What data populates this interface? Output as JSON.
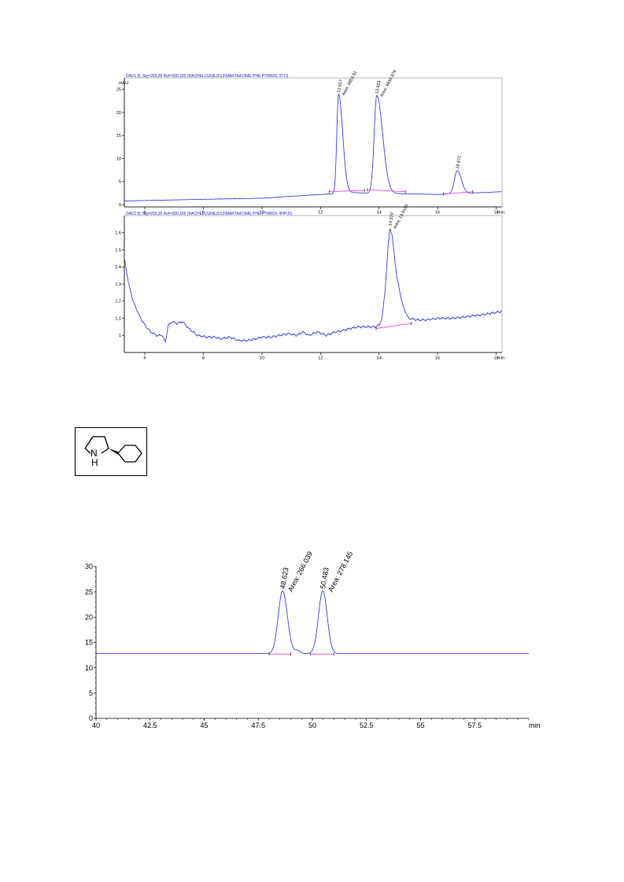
{
  "chart_data": [
    {
      "id": "c1",
      "type": "line",
      "header": "DAD1 B, Sig=255,35 Ref=360,100 (RACHEL\\JUNE2013\\MARTA\\FOME PHE PYRROL 3T.D)",
      "ylabel": "mAU",
      "xunit": "min",
      "xlim": [
        5.3,
        18.2
      ],
      "ylim": [
        -0.5,
        27.5
      ],
      "xticks": [
        {
          "v": 6,
          "label": "6"
        },
        {
          "v": 8,
          "label": "8"
        },
        {
          "v": 10,
          "label": "10"
        },
        {
          "v": 12,
          "label": "12"
        },
        {
          "v": 14,
          "label": "14"
        },
        {
          "v": 16,
          "label": "16"
        },
        {
          "v": 18,
          "label": "18"
        }
      ],
      "yticks": [
        {
          "v": 0,
          "label": "0"
        },
        {
          "v": 5,
          "label": "5"
        },
        {
          "v": 10,
          "label": "10"
        },
        {
          "v": 15,
          "label": "15"
        },
        {
          "v": 20,
          "label": "20"
        },
        {
          "v": 25,
          "label": "25"
        }
      ],
      "baseline": 0.8,
      "drift": [
        [
          5.3,
          0.8
        ],
        [
          10,
          1.4
        ],
        [
          12,
          2.2
        ],
        [
          13,
          2.6
        ],
        [
          16,
          2.2
        ],
        [
          18.2,
          2.8
        ]
      ],
      "peaks": [
        {
          "rt": 12.617,
          "label": "12.617",
          "area_label": "Area: 4853.91",
          "height": 21.5,
          "w1": 0.06,
          "w2": 0.14
        },
        {
          "rt": 13.923,
          "label": "13.923",
          "area_label": "Area: 4834.679",
          "height": 21.2,
          "w1": 0.09,
          "w2": 0.2
        },
        {
          "rt": 16.672,
          "label": "16.672",
          "area_label": "",
          "height": 5.0,
          "w1": 0.1,
          "w2": 0.14
        }
      ],
      "baseline_segments": [
        [
          12.3,
          2.8,
          13.5,
          3.1
        ],
        [
          13.6,
          3.2,
          14.9,
          2.8
        ],
        [
          16.2,
          2.3,
          17.2,
          2.8
        ]
      ]
    },
    {
      "id": "c2",
      "type": "line",
      "header": "DAD1 B, Sig=255,35 Ref=360,100 (RACHEL\\JUNE2013\\MARTA\\FOME PHE PYRROL 4HH.D)",
      "ylabel": "",
      "xunit": "min",
      "xlim": [
        5.3,
        18.2
      ],
      "ylim": [
        0.9,
        1.7
      ],
      "xticks": [
        {
          "v": 6,
          "label": "6"
        },
        {
          "v": 8,
          "label": "8"
        },
        {
          "v": 10,
          "label": "10"
        },
        {
          "v": 12,
          "label": "12"
        },
        {
          "v": 14,
          "label": "14"
        },
        {
          "v": 16,
          "label": "16"
        },
        {
          "v": 18,
          "label": "18"
        }
      ],
      "yticks": [
        {
          "v": 1.0,
          "label": "1"
        },
        {
          "v": 1.1,
          "label": "1.1"
        },
        {
          "v": 1.2,
          "label": "1.2"
        },
        {
          "v": 1.3,
          "label": "1.3"
        },
        {
          "v": 1.4,
          "label": "1.4"
        },
        {
          "v": 1.5,
          "label": "1.5"
        },
        {
          "v": 1.6,
          "label": "1.6"
        }
      ],
      "noisy": [
        [
          5.3,
          1.45
        ],
        [
          5.45,
          1.3
        ],
        [
          5.6,
          1.2
        ],
        [
          5.8,
          1.12
        ],
        [
          6.0,
          1.06
        ],
        [
          6.2,
          1.02
        ],
        [
          6.4,
          1.0
        ],
        [
          6.6,
          1.0
        ],
        [
          6.7,
          0.96
        ],
        [
          6.8,
          1.06
        ],
        [
          6.95,
          1.08
        ],
        [
          7.1,
          1.07
        ],
        [
          7.3,
          1.08
        ],
        [
          7.5,
          1.04
        ],
        [
          7.8,
          1.0
        ],
        [
          8.1,
          0.99
        ],
        [
          8.4,
          0.99
        ],
        [
          8.6,
          0.98
        ],
        [
          8.9,
          0.99
        ],
        [
          9.2,
          0.97
        ],
        [
          9.5,
          0.97
        ],
        [
          9.8,
          0.98
        ],
        [
          10.0,
          0.99
        ],
        [
          10.3,
          0.99
        ],
        [
          10.6,
          1.0
        ],
        [
          10.9,
          1.01
        ],
        [
          11.2,
          1.0
        ],
        [
          11.4,
          1.02
        ],
        [
          11.6,
          1.0
        ],
        [
          11.9,
          1.02
        ],
        [
          12.2,
          1.0
        ],
        [
          12.5,
          1.02
        ],
        [
          12.8,
          1.03
        ],
        [
          13.0,
          1.04
        ],
        [
          13.3,
          1.05
        ],
        [
          13.6,
          1.05
        ],
        [
          13.9,
          1.05
        ],
        [
          14.0,
          1.06
        ],
        [
          14.1,
          1.1
        ],
        [
          14.2,
          1.25
        ],
        [
          14.3,
          1.5
        ],
        [
          14.37,
          1.63
        ],
        [
          14.45,
          1.58
        ],
        [
          14.6,
          1.35
        ],
        [
          14.8,
          1.18
        ],
        [
          15.0,
          1.1
        ],
        [
          15.3,
          1.09
        ],
        [
          15.6,
          1.09
        ],
        [
          16.0,
          1.1
        ],
        [
          16.5,
          1.1
        ],
        [
          17.0,
          1.11
        ],
        [
          17.5,
          1.12
        ],
        [
          18.2,
          1.14
        ]
      ],
      "peaks": [
        {
          "rt": 14.37,
          "label": "14.370",
          "area_label": "Area: 13.6195",
          "height": 0.58
        }
      ],
      "baseline_segments": [
        [
          13.9,
          1.04,
          15.1,
          1.07
        ]
      ]
    },
    {
      "id": "c3",
      "type": "line",
      "ylabel": "",
      "xunit": "min",
      "xlim": [
        40,
        60
      ],
      "ylim": [
        0,
        30
      ],
      "xticks": [
        {
          "v": 40,
          "label": "40"
        },
        {
          "v": 42.5,
          "label": "42.5"
        },
        {
          "v": 45,
          "label": "45"
        },
        {
          "v": 47.5,
          "label": "47.5"
        },
        {
          "v": 50,
          "label": "50"
        },
        {
          "v": 52.5,
          "label": "52.5"
        },
        {
          "v": 55,
          "label": "55"
        },
        {
          "v": 57.5,
          "label": "57.5"
        }
      ],
      "yticks": [
        {
          "v": 0,
          "label": "0"
        },
        {
          "v": 5,
          "label": "5"
        },
        {
          "v": 10,
          "label": "10"
        },
        {
          "v": 15,
          "label": "15"
        },
        {
          "v": 20,
          "label": "20"
        },
        {
          "v": 25,
          "label": "25"
        },
        {
          "v": 30,
          "label": "30"
        }
      ],
      "baseline": 12.8,
      "peaks": [
        {
          "rt": 48.623,
          "label": "48.623",
          "area_label": "Area: 266.039",
          "height": 12.4,
          "w1": 0.2,
          "w2": 0.22
        },
        {
          "rt": 50.483,
          "label": "50.483",
          "area_label": "Area: 278.145",
          "height": 12.4,
          "w1": 0.2,
          "w2": 0.2
        }
      ],
      "baseline_segments": [
        [
          48.0,
          12.7,
          49.0,
          12.7
        ],
        [
          49.9,
          12.7,
          51.0,
          12.7
        ]
      ]
    }
  ],
  "structure": {
    "nh_label": "N\nH"
  },
  "colors": {
    "trace": "#2a2adc",
    "baseline": "#e040e0",
    "header": "#1a1acc",
    "axis": "#000000"
  }
}
